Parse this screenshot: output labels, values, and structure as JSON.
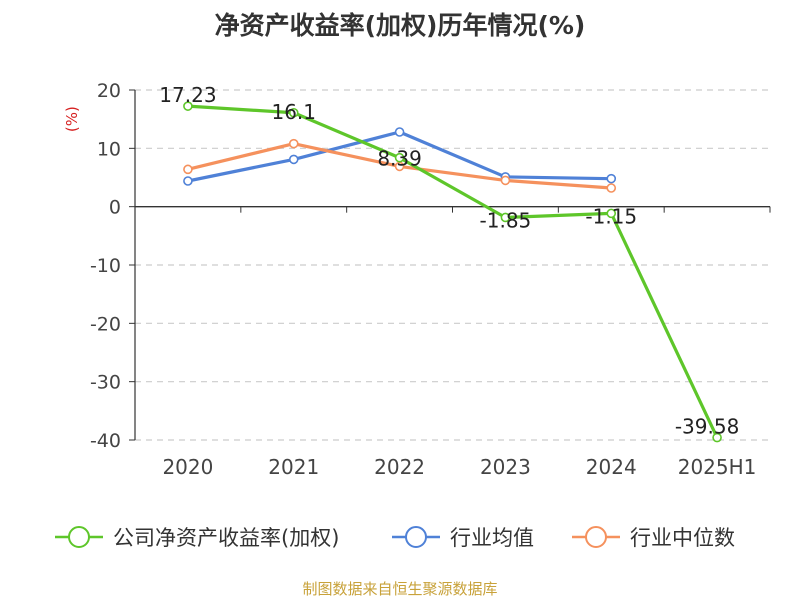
{
  "title": "净资产收益率(加权)历年情况(%)",
  "source": "制图数据来自恒生聚源数据库",
  "chart_data": {
    "type": "line",
    "title": "净资产收益率(加权)历年情况(%)",
    "ylabel": "(%)",
    "xlabel": "",
    "categories": [
      "2020",
      "2021",
      "2022",
      "2023",
      "2024",
      "2025H1"
    ],
    "ylim": [
      -40,
      20
    ],
    "yticks": [
      20,
      10,
      0,
      -10,
      -20,
      -30,
      -40
    ],
    "grid": true,
    "legend_position": "bottom",
    "series": [
      {
        "name": "公司净资产收益率(加权)",
        "color": "#5ec62a",
        "values": [
          17.23,
          16.1,
          8.39,
          -1.85,
          -1.15,
          -39.58
        ],
        "labels": [
          "17.23",
          "16.1",
          "8.39",
          "-1.85",
          "-1.15",
          "-39.58"
        ]
      },
      {
        "name": "行业均值",
        "color": "#4f81d7",
        "values": [
          4.4,
          8.1,
          12.8,
          5.1,
          4.8,
          null
        ]
      },
      {
        "name": "行业中位数",
        "color": "#f5915d",
        "values": [
          6.4,
          10.8,
          6.9,
          4.5,
          3.2,
          null
        ]
      }
    ]
  }
}
